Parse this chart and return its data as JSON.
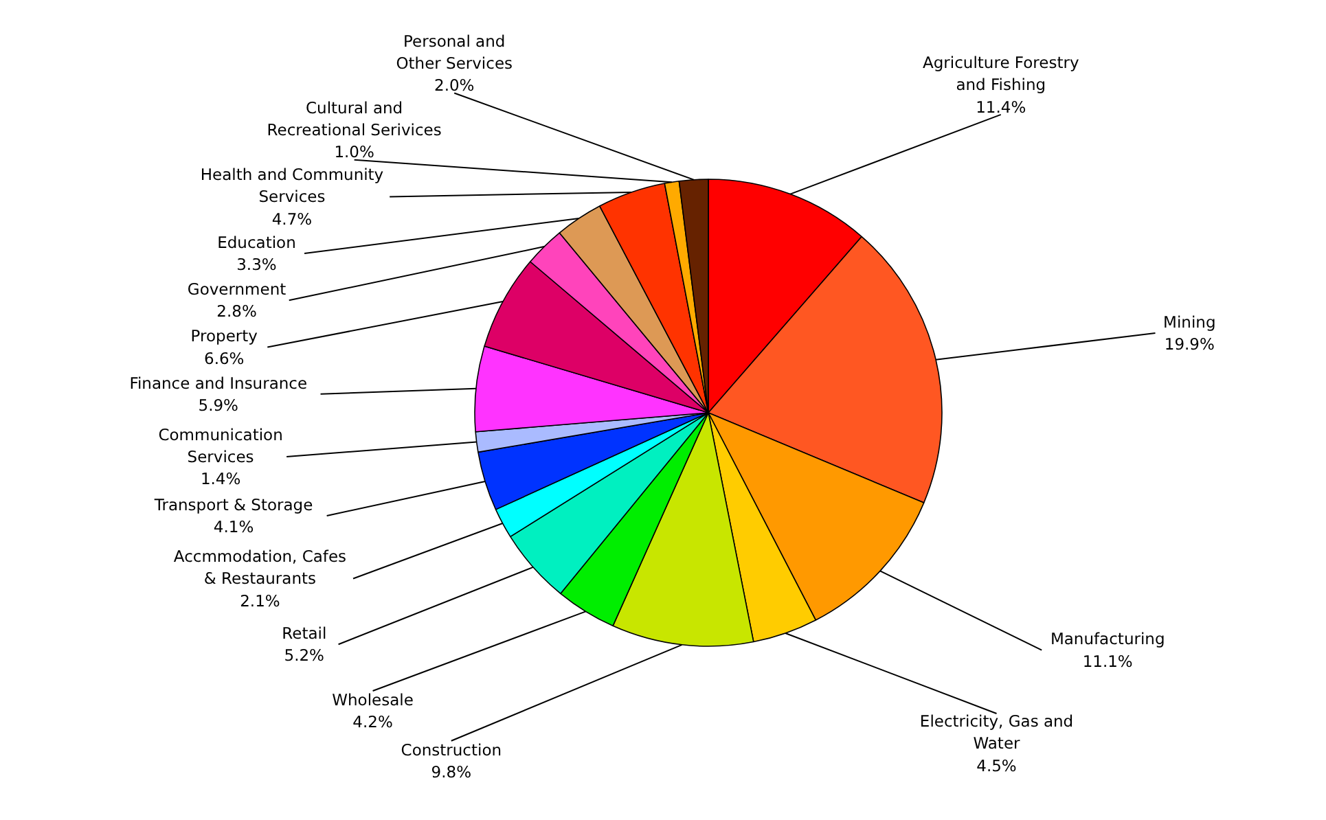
{
  "chart_data": {
    "type": "pie",
    "categories": [
      "Agriculture Forestry\nand Fishing",
      "Mining",
      "Manufacturing",
      "Electricity, Gas and\nWater",
      "Construction",
      "Wholesale",
      "Retail",
      "Accmmodation, Cafes\n& Restaurants",
      "Transport & Storage",
      "Communication\nServices",
      "Finance and Insurance",
      "Property",
      "Government",
      "Education",
      "Health and Community\nServices",
      "Cultural and\nRecreational Serivices",
      "Personal and\nOther Services"
    ],
    "values": [
      11.4,
      19.9,
      11.1,
      4.5,
      9.8,
      4.2,
      5.2,
      2.1,
      4.1,
      1.4,
      5.9,
      6.6,
      2.8,
      3.3,
      4.7,
      1.0,
      2.0
    ],
    "colors": [
      "#ff0000",
      "#ff5722",
      "#ff9900",
      "#ffcc00",
      "#c8e600",
      "#00ee00",
      "#00f0c0",
      "#00ffff",
      "#0033ff",
      "#aabbff",
      "#ff33ff",
      "#dd0066",
      "#ff44bb",
      "#dd9955",
      "#ff3300",
      "#ffaa00",
      "#662200"
    ],
    "value_labels": [
      "11.4%",
      "19.9%",
      "11.1%",
      "4.5%",
      "9.8%",
      "4.2%",
      "5.2%",
      "2.1%",
      "4.1%",
      "1.4%",
      "5.9%",
      "6.6%",
      "2.8%",
      "3.3%",
      "4.7%",
      "1.0%",
      "2.0%"
    ],
    "legend": false
  }
}
